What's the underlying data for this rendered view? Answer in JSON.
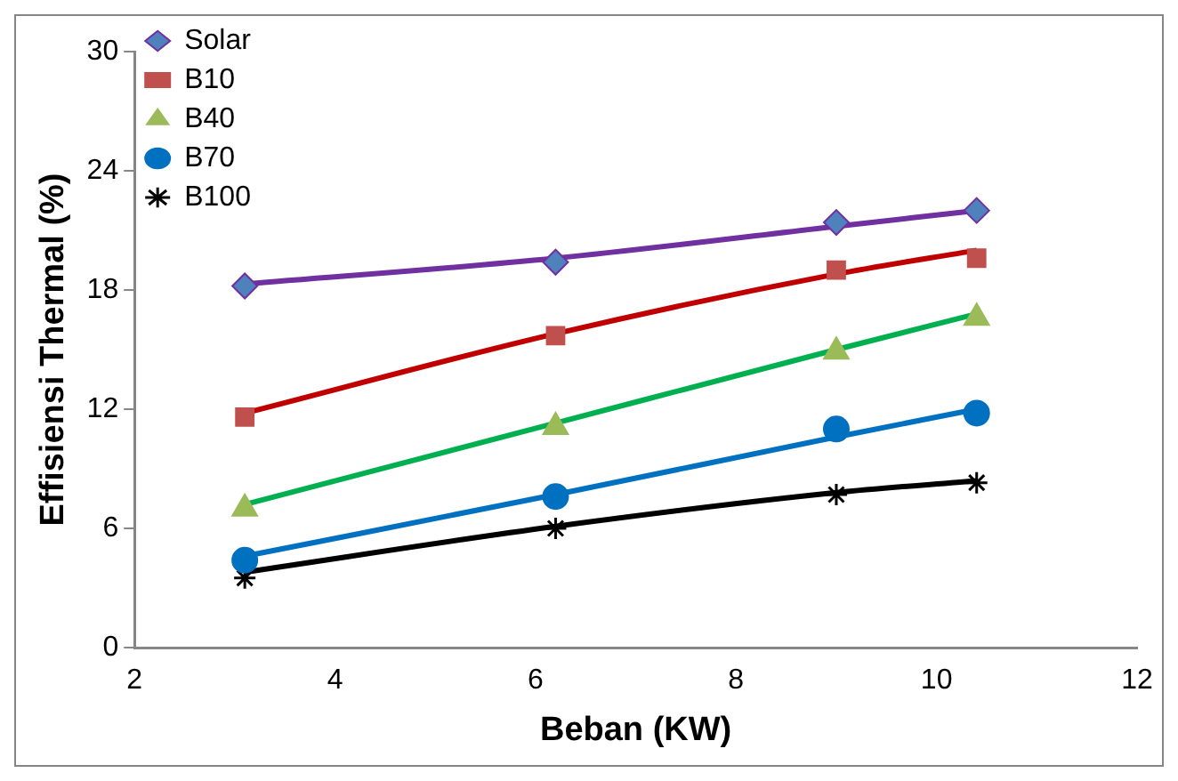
{
  "chart_data": {
    "type": "scatter",
    "xlabel": "Beban (KW)",
    "ylabel": "Effisiensi Thermal (%)",
    "xlim": [
      2,
      12
    ],
    "xticks": [
      2,
      4,
      6,
      8,
      10,
      12
    ],
    "ylim": [
      0,
      30
    ],
    "yticks": [
      0,
      6,
      12,
      18,
      24,
      30
    ],
    "grid": false,
    "legend": "top left",
    "series": [
      {
        "name": "Solar",
        "color": "#4f81bd",
        "marker": "diamond",
        "x": [
          3.1,
          6.2,
          9.0,
          10.4
        ],
        "values": [
          18.2,
          19.4,
          21.4,
          22.0
        ]
      },
      {
        "name": "B10",
        "color": "#c0504d",
        "marker": "square",
        "x": [
          3.1,
          6.2,
          9.0,
          10.4
        ],
        "values": [
          11.6,
          15.7,
          19.0,
          19.6
        ]
      },
      {
        "name": "B40",
        "color": "#9bbb59",
        "marker": "triangle",
        "x": [
          3.1,
          6.2,
          9.0,
          10.4
        ],
        "values": [
          7.0,
          11.1,
          14.9,
          16.6
        ]
      },
      {
        "name": "B70",
        "color": "#0070c0",
        "marker": "circle",
        "x": [
          3.1,
          6.2,
          9.0,
          10.4
        ],
        "values": [
          4.4,
          7.6,
          11.0,
          11.8
        ]
      },
      {
        "name": "B100",
        "color": "#000000",
        "marker": "cross",
        "x": [
          3.1,
          6.2,
          9.0,
          10.4
        ],
        "values": [
          3.5,
          6.0,
          7.7,
          8.3
        ]
      },
      {
        "type": "line",
        "color": "#7030a0",
        "marker": "none",
        "line_style": "solid",
        "x": [
          3.1,
          6.2,
          9.0,
          10.4
        ],
        "values": [
          18.3,
          19.6,
          21.2,
          22.0
        ]
      },
      {
        "type": "line",
        "color": "#c00000",
        "marker": "none",
        "line_style": "solid",
        "x": [
          3.1,
          6.2,
          9.0,
          10.4
        ],
        "values": [
          11.8,
          15.8,
          18.8,
          20.0
        ]
      },
      {
        "type": "line",
        "color": "#00b050",
        "marker": "none",
        "line_style": "solid",
        "x": [
          3.1,
          6.2,
          9.0,
          10.4
        ],
        "values": [
          7.2,
          11.3,
          15.0,
          16.8
        ]
      },
      {
        "type": "line",
        "color": "#0070c0",
        "marker": "none",
        "line_style": "solid",
        "x": [
          3.1,
          6.2,
          9.0,
          10.4
        ],
        "values": [
          4.6,
          7.7,
          10.6,
          12.0
        ]
      },
      {
        "type": "line",
        "color": "#000000",
        "marker": "none",
        "line_style": "solid",
        "x": [
          3.1,
          6.2,
          9.0,
          10.4
        ],
        "values": [
          3.8,
          6.1,
          7.8,
          8.4
        ]
      }
    ]
  }
}
